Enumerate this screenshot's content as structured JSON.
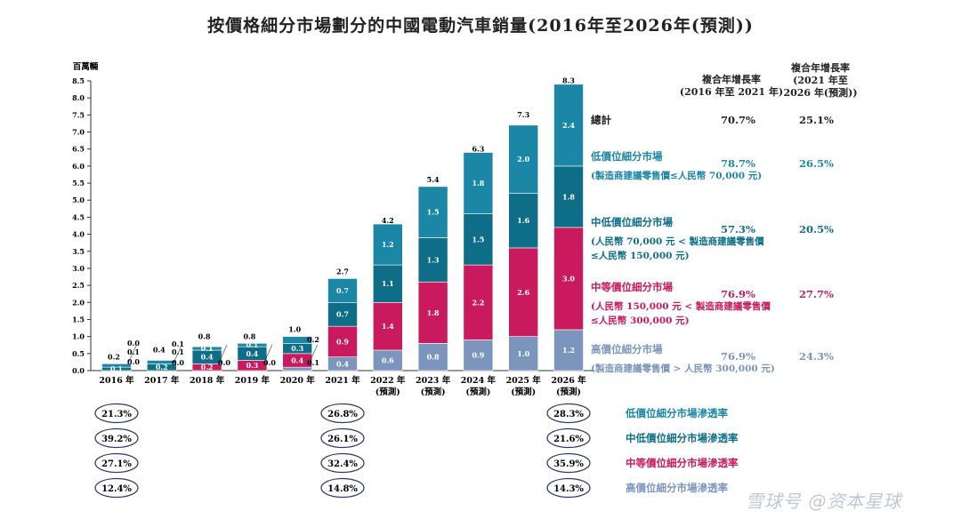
{
  "title": "按價格細分市場劃分的中國電動汽車銷量(2016年至2026年(預測))",
  "colors": {
    "low": "#1c86a6",
    "midlow": "#0e6e87",
    "mid": "#c81a5c",
    "high": "#7b95bd",
    "total": "#222222"
  },
  "chart_data": {
    "type": "bar",
    "stacked": true,
    "ylabel": "百萬輛",
    "ylim": [
      0,
      8.5
    ],
    "yticks": [
      "0.0",
      "0.5",
      "1.0",
      "1.5",
      "2.0",
      "2.5",
      "3.0",
      "3.5",
      "4.0",
      "4.5",
      "5.0",
      "5.5",
      "6.0",
      "6.5",
      "7.0",
      "7.5",
      "8.0",
      "8.5"
    ],
    "categories": [
      "2016 年",
      "2017 年",
      "2018 年",
      "2019 年",
      "2020 年",
      "2021 年",
      "2022 年",
      "2023 年",
      "2024 年",
      "2025 年",
      "2026 年"
    ],
    "category_sub": [
      "",
      "",
      "",
      "",
      "",
      "",
      "(預測)",
      "(預測)",
      "(預測)",
      "(預測)",
      "(預測)"
    ],
    "totals": [
      "0.2",
      "0.4",
      "0.8",
      "0.8",
      "1.0",
      "2.7",
      "4.2",
      "5.4",
      "6.3",
      "7.3",
      "8.3"
    ],
    "total_values": [
      0.2,
      0.4,
      0.8,
      0.8,
      1.0,
      2.7,
      4.2,
      5.4,
      6.3,
      7.3,
      8.3
    ],
    "series": [
      {
        "name": "高價位細分市場",
        "color": "high",
        "values": [
          0.0,
          0.0,
          0.0,
          0.0,
          0.1,
          0.4,
          0.6,
          0.8,
          0.9,
          1.0,
          1.2
        ],
        "labels": [
          "0.0",
          "0.0",
          "0.0",
          "0.0",
          "0.1",
          "0.4",
          "0.6",
          "0.8",
          "0.9",
          "1.0",
          "1.2"
        ]
      },
      {
        "name": "中等價位細分市場",
        "color": "mid",
        "values": [
          0.0,
          0.0,
          0.2,
          0.3,
          0.4,
          0.9,
          1.4,
          1.8,
          2.2,
          2.6,
          3.0
        ],
        "labels": [
          "0.0",
          "0.0",
          "0.2",
          "0.3",
          "0.4",
          "0.9",
          "1.4",
          "1.8",
          "2.2",
          "2.6",
          "3.0"
        ]
      },
      {
        "name": "中低價位細分市場",
        "color": "midlow",
        "values": [
          0.1,
          0.2,
          0.4,
          0.4,
          0.3,
          0.7,
          1.1,
          1.3,
          1.5,
          1.6,
          1.8
        ],
        "labels": [
          "0.1",
          "0.2",
          "0.4",
          "0.4",
          "0.3",
          "0.7",
          "1.1",
          "1.3",
          "1.5",
          "1.6",
          "1.8"
        ]
      },
      {
        "name": "低價位細分市場",
        "color": "low",
        "values": [
          0.1,
          0.1,
          0.1,
          0.1,
          0.2,
          0.7,
          1.2,
          1.5,
          1.8,
          2.0,
          2.4
        ],
        "labels": [
          "0.1",
          "0.1",
          "0.1",
          "0.1",
          "0.2",
          "0.7",
          "1.2",
          "1.5",
          "1.8",
          "2.0",
          "2.4"
        ]
      }
    ],
    "small_labels_left": [
      "0.2",
      "0.4",
      "",
      "",
      ""
    ],
    "small_labels_right": [
      [
        "0.0",
        "0.1",
        "0.0"
      ],
      [
        "0.1",
        "0.1",
        "0.0"
      ],
      [
        "0.0"
      ],
      [
        "0.0"
      ],
      [
        "0.2",
        "0.1"
      ]
    ]
  },
  "cagr": {
    "header1": [
      "複合年增長率",
      "(2016 年至 2021 年)"
    ],
    "header2": [
      "複合年增長率",
      "(2021 年至",
      "2026 年(預測))"
    ],
    "rows": [
      {
        "name": "總計",
        "desc": [],
        "v1": "70.7%",
        "v2": "25.1%",
        "color": "total"
      },
      {
        "name": "低價位細分市場",
        "desc": [
          "(製造商建議零售價≤人民幣 70,000 元)"
        ],
        "v1": "78.7%",
        "v2": "26.5%",
        "color": "low"
      },
      {
        "name": "中低價位細分市場",
        "desc": [
          "(人民幣 70,000 元 < 製造商建議零售價",
          "≤人民幣 150,000 元)"
        ],
        "v1": "57.3%",
        "v2": "20.5%",
        "color": "midlow"
      },
      {
        "name": "中等價位細分市場",
        "desc": [
          "(人民幣 150,000 元 < 製造商建議零售價",
          "≤人民幣 300,000 元)"
        ],
        "v1": "76.9%",
        "v2": "27.7%",
        "color": "mid"
      },
      {
        "name": "高價位細分市場",
        "desc": [
          "(製造商建議零售價 > 人民幣 300,000 元)"
        ],
        "v1": "76.9%",
        "v2": "24.3%",
        "color": "high"
      }
    ]
  },
  "penetration": {
    "labels": [
      {
        "text": "低價位細分市場滲透率",
        "color": "low"
      },
      {
        "text": "中低價位細分市場滲透率",
        "color": "midlow"
      },
      {
        "text": "中等價位細分市場滲透率",
        "color": "mid"
      },
      {
        "text": "高價位細分市場滲透率",
        "color": "high"
      }
    ],
    "columns": [
      {
        "year_index": 0,
        "values": [
          "21.3%",
          "39.2%",
          "27.1%",
          "12.4%"
        ]
      },
      {
        "year_index": 5,
        "values": [
          "26.8%",
          "26.1%",
          "32.4%",
          "14.8%"
        ]
      },
      {
        "year_index": 10,
        "values": [
          "28.3%",
          "21.6%",
          "35.9%",
          "14.3%"
        ]
      }
    ]
  },
  "watermark": "雪球号  @资本星球"
}
